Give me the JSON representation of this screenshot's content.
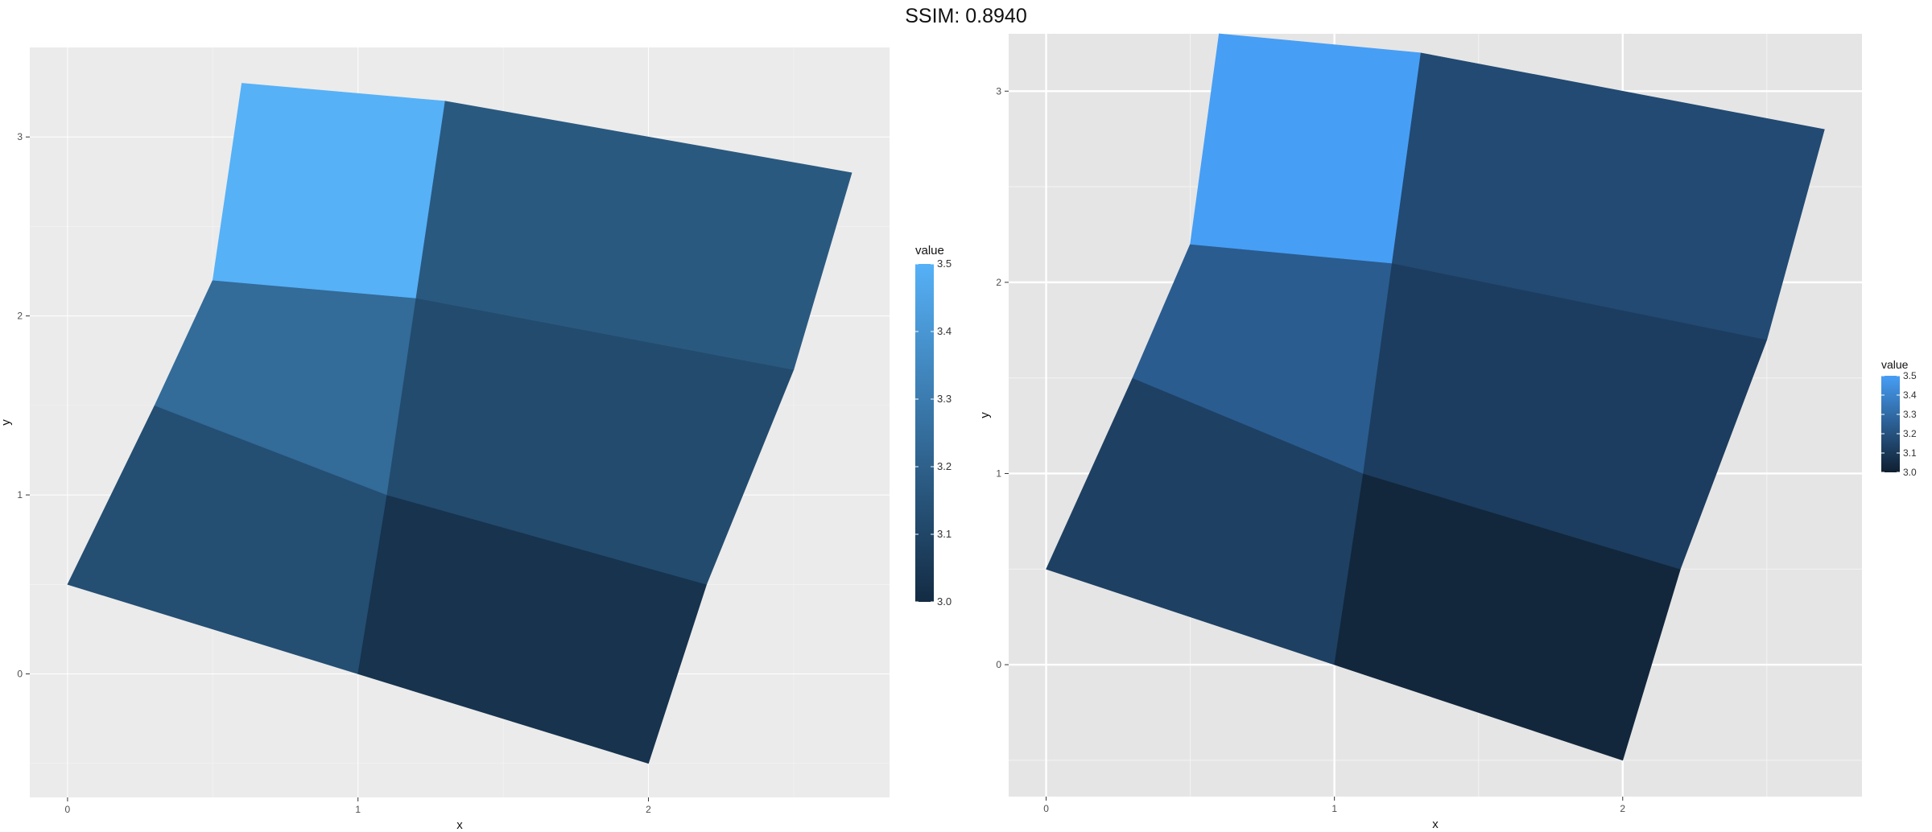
{
  "title": "SSIM: 0.8940",
  "chart_data": [
    {
      "type": "heatmap",
      "geometry": "quadrilateral mesh",
      "xlabel": "x",
      "ylabel": "y",
      "xlim": [
        -0.13,
        2.83
      ],
      "ylim": [
        -0.69,
        3.5
      ],
      "x_ticks": [
        0,
        1,
        2
      ],
      "y_ticks": [
        0,
        1,
        2,
        3
      ],
      "grid": true,
      "background": "#ebebeb",
      "legend": {
        "title": "value",
        "placement": "right",
        "range": [
          3.0,
          3.5
        ],
        "breaks": [
          3.0,
          3.1,
          3.2,
          3.3,
          3.4,
          3.5
        ],
        "labels": [
          "3.0",
          "3.1",
          "3.2",
          "3.3",
          "3.4",
          "3.5"
        ],
        "colors": {
          "low": "#132b43",
          "high": "#56b1f7"
        }
      },
      "vertices": [
        [
          [
            0,
            0.5
          ],
          [
            1,
            0
          ],
          [
            2,
            -0.5
          ]
        ],
        [
          [
            0.3,
            1.5
          ],
          [
            1.1,
            1
          ],
          [
            2.2,
            0.5
          ]
        ],
        [
          [
            0.5,
            2.2
          ],
          [
            1.2,
            2.1
          ],
          [
            2.5,
            1.7
          ]
        ],
        [
          [
            0.6,
            3.3
          ],
          [
            1.3,
            3.2
          ],
          [
            2.7,
            2.8
          ]
        ]
      ],
      "cells": [
        {
          "row": 0,
          "col": 0,
          "value": 3.13
        },
        {
          "row": 0,
          "col": 1,
          "value": 3.03
        },
        {
          "row": 1,
          "col": 0,
          "value": 3.24
        },
        {
          "row": 1,
          "col": 1,
          "value": 3.12
        },
        {
          "row": 2,
          "col": 0,
          "value": 3.5
        },
        {
          "row": 2,
          "col": 1,
          "value": 3.17
        }
      ]
    },
    {
      "type": "heatmap",
      "geometry": "quadrilateral mesh",
      "xlabel": "x",
      "ylabel": "y",
      "xlim": [
        -0.13,
        2.83
      ],
      "ylim": [
        -0.69,
        3.3
      ],
      "x_ticks": [
        0,
        1,
        2
      ],
      "y_ticks": [
        0,
        1,
        2,
        3
      ],
      "grid": true,
      "background": "#e5e5e5",
      "legend": {
        "title": "value",
        "placement": "right",
        "range": [
          3.0,
          3.5
        ],
        "breaks": [
          3.0,
          3.1,
          3.2,
          3.3,
          3.4,
          3.5
        ],
        "labels": [
          "3.0",
          "3.1",
          "3.2",
          "3.3",
          "3.4",
          "3.5"
        ],
        "colors": {
          "low": "#0f1f30",
          "high": "#479ef5"
        }
      },
      "vertices": [
        [
          [
            0,
            0.5
          ],
          [
            1,
            0
          ],
          [
            2,
            -0.5
          ]
        ],
        [
          [
            0.3,
            1.5
          ],
          [
            1.1,
            1
          ],
          [
            2.2,
            0.5
          ]
        ],
        [
          [
            0.5,
            2.2
          ],
          [
            1.2,
            2.1
          ],
          [
            2.5,
            1.7
          ]
        ],
        [
          [
            0.6,
            3.3
          ],
          [
            1.3,
            3.2
          ],
          [
            2.7,
            2.8
          ]
        ]
      ],
      "cells": [
        {
          "row": 0,
          "col": 0,
          "value": 3.13
        },
        {
          "row": 0,
          "col": 1,
          "value": 3.03
        },
        {
          "row": 1,
          "col": 0,
          "value": 3.24
        },
        {
          "row": 1,
          "col": 1,
          "value": 3.12
        },
        {
          "row": 2,
          "col": 0,
          "value": 3.5
        },
        {
          "row": 2,
          "col": 1,
          "value": 3.17
        }
      ]
    }
  ]
}
